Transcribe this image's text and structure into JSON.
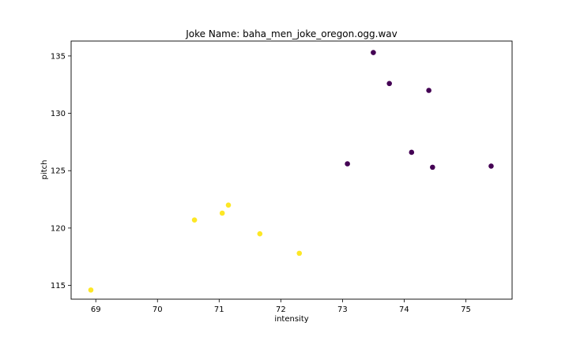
{
  "chart_data": {
    "type": "scatter",
    "title": "Joke Name: baha_men_joke_oregon.ogg.wav",
    "xlabel": "intensity",
    "ylabel": "pitch",
    "xlim": [
      68.6,
      75.75
    ],
    "ylim": [
      113.8,
      136.3
    ],
    "xticks": [
      69,
      70,
      71,
      72,
      73,
      74,
      75
    ],
    "yticks": [
      115,
      120,
      125,
      130,
      135
    ],
    "grid": false,
    "colors": {
      "cluster_0": "#440154",
      "cluster_1": "#fde725"
    },
    "points": [
      {
        "x": 73.5,
        "y": 135.3,
        "cluster": 0
      },
      {
        "x": 73.76,
        "y": 132.6,
        "cluster": 0
      },
      {
        "x": 74.4,
        "y": 132.0,
        "cluster": 0
      },
      {
        "x": 74.12,
        "y": 126.6,
        "cluster": 0
      },
      {
        "x": 73.08,
        "y": 125.6,
        "cluster": 0
      },
      {
        "x": 74.46,
        "y": 125.3,
        "cluster": 0
      },
      {
        "x": 75.41,
        "y": 125.4,
        "cluster": 0
      },
      {
        "x": 71.15,
        "y": 122.0,
        "cluster": 1
      },
      {
        "x": 71.05,
        "y": 121.3,
        "cluster": 1
      },
      {
        "x": 70.6,
        "y": 120.7,
        "cluster": 1
      },
      {
        "x": 71.66,
        "y": 119.5,
        "cluster": 1
      },
      {
        "x": 72.3,
        "y": 117.8,
        "cluster": 1
      },
      {
        "x": 68.92,
        "y": 114.6,
        "cluster": 1
      }
    ]
  }
}
